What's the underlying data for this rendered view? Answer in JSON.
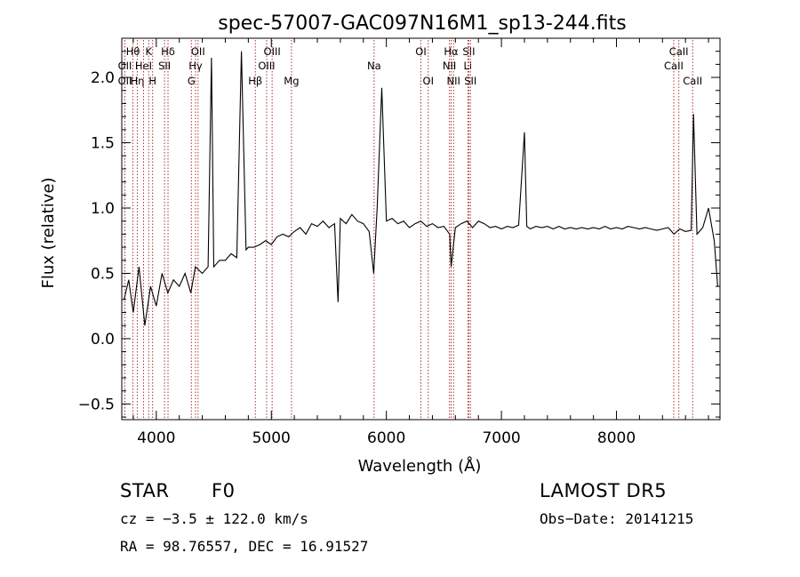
{
  "chart_data": {
    "type": "line",
    "title": "spec-57007-GAC097N16M1_sp13-244.fits",
    "xlabel": "Wavelength (Å)",
    "ylabel": "Flux (relative)",
    "xlim": [
      3700,
      8900
    ],
    "ylim": [
      -0.62,
      2.3
    ],
    "x_ticks": [
      4000,
      5000,
      6000,
      7000,
      8000
    ],
    "y_ticks": [
      -0.5,
      0.0,
      0.5,
      1.0,
      1.5,
      2.0
    ],
    "x_tick_labels": [
      "4000",
      "5000",
      "6000",
      "7000",
      "8000"
    ],
    "y_tick_labels": [
      "−0.5",
      "0.0",
      "0.5",
      "1.0",
      "1.5",
      "2.0"
    ],
    "line_color": "#000000",
    "marker_color": "#b03030",
    "grid": false,
    "series": [
      {
        "x": [
          3720,
          3760,
          3800,
          3850,
          3900,
          3950,
          4000,
          4050,
          4100,
          4150,
          4200,
          4250,
          4300,
          4340,
          4400,
          4450,
          4480,
          4500,
          4550,
          4600,
          4650,
          4700,
          4740,
          4780,
          4800,
          4850,
          4900,
          4950,
          5000,
          5050,
          5100,
          5150,
          5200,
          5250,
          5300,
          5350,
          5400,
          5450,
          5500,
          5550,
          5580,
          5600,
          5650,
          5700,
          5750,
          5800,
          5850,
          5890,
          5920,
          5960,
          6000,
          6050,
          6100,
          6150,
          6200,
          6250,
          6300,
          6350,
          6400,
          6450,
          6500,
          6550,
          6563,
          6600,
          6650,
          6700,
          6750,
          6800,
          6850,
          6900,
          6950,
          7000,
          7050,
          7100,
          7150,
          7200,
          7220,
          7250,
          7300,
          7350,
          7400,
          7450,
          7500,
          7550,
          7600,
          7650,
          7700,
          7750,
          7800,
          7850,
          7900,
          7950,
          8000,
          8050,
          8100,
          8150,
          8200,
          8250,
          8300,
          8350,
          8400,
          8450,
          8500,
          8550,
          8600,
          8650,
          8670,
          8700,
          8750,
          8800,
          8850,
          8880
        ],
        "y": [
          0.3,
          0.45,
          0.2,
          0.55,
          0.1,
          0.4,
          0.25,
          0.5,
          0.35,
          0.45,
          0.4,
          0.5,
          0.35,
          0.55,
          0.5,
          0.55,
          2.15,
          0.55,
          0.6,
          0.6,
          0.65,
          0.62,
          2.2,
          0.68,
          0.7,
          0.7,
          0.72,
          0.75,
          0.72,
          0.78,
          0.8,
          0.78,
          0.82,
          0.85,
          0.8,
          0.88,
          0.86,
          0.9,
          0.85,
          0.88,
          0.28,
          0.92,
          0.88,
          0.95,
          0.9,
          0.88,
          0.82,
          0.5,
          1.0,
          1.92,
          0.9,
          0.92,
          0.88,
          0.9,
          0.85,
          0.88,
          0.9,
          0.86,
          0.88,
          0.85,
          0.86,
          0.8,
          0.55,
          0.85,
          0.88,
          0.9,
          0.85,
          0.9,
          0.88,
          0.85,
          0.86,
          0.84,
          0.86,
          0.85,
          0.87,
          1.58,
          0.86,
          0.84,
          0.86,
          0.85,
          0.86,
          0.84,
          0.86,
          0.84,
          0.85,
          0.84,
          0.85,
          0.84,
          0.85,
          0.84,
          0.86,
          0.84,
          0.85,
          0.84,
          0.86,
          0.85,
          0.84,
          0.85,
          0.84,
          0.83,
          0.84,
          0.85,
          0.8,
          0.84,
          0.82,
          0.83,
          1.72,
          0.8,
          0.85,
          1.0,
          0.75,
          0.4
        ]
      }
    ],
    "line_markers": [
      {
        "label": "Hθ",
        "x": 3797,
        "row": 1
      },
      {
        "label": "OII",
        "x": 3727,
        "row": 2
      },
      {
        "label": "OII",
        "x": 3727,
        "row": 3
      },
      {
        "label": "Hη",
        "x": 3835,
        "row": 3
      },
      {
        "label": "K",
        "x": 3934,
        "row": 1
      },
      {
        "label": "HeI",
        "x": 3889,
        "row": 2
      },
      {
        "label": "H",
        "x": 3968,
        "row": 3
      },
      {
        "label": "Hδ",
        "x": 4102,
        "row": 1
      },
      {
        "label": "SII",
        "x": 4072,
        "row": 2
      },
      {
        "label": "OII",
        "x": 4363,
        "row": 1
      },
      {
        "label": "Hγ",
        "x": 4341,
        "row": 2
      },
      {
        "label": "G",
        "x": 4305,
        "row": 3
      },
      {
        "label": "Hβ",
        "x": 4861,
        "row": 3
      },
      {
        "label": "OIII",
        "x": 5007,
        "row": 1
      },
      {
        "label": "OIII",
        "x": 4959,
        "row": 2
      },
      {
        "label": "Mg",
        "x": 5175,
        "row": 3
      },
      {
        "label": "Na",
        "x": 5893,
        "row": 2
      },
      {
        "label": "OI",
        "x": 6300,
        "row": 1
      },
      {
        "label": "OI",
        "x": 6364,
        "row": 3
      },
      {
        "label": "Hα",
        "x": 6563,
        "row": 1
      },
      {
        "label": "NII",
        "x": 6548,
        "row": 2
      },
      {
        "label": "NII",
        "x": 6584,
        "row": 3
      },
      {
        "label": "SII",
        "x": 6717,
        "row": 1
      },
      {
        "label": "Li",
        "x": 6708,
        "row": 2
      },
      {
        "label": "SII",
        "x": 6731,
        "row": 3
      },
      {
        "label": "CaII",
        "x": 8542,
        "row": 1
      },
      {
        "label": "CaII",
        "x": 8498,
        "row": 2
      },
      {
        "label": "CaII",
        "x": 8662,
        "row": 3
      }
    ]
  },
  "info": {
    "object_class": "STAR",
    "subclass": "F0",
    "survey": "LAMOST  DR5",
    "redshift_line": "cz = −3.5 ± 122.0 km/s",
    "obs_date": "Obs−Date: 20141215",
    "coords": "RA =  98.76557, DEC =  16.91527"
  }
}
